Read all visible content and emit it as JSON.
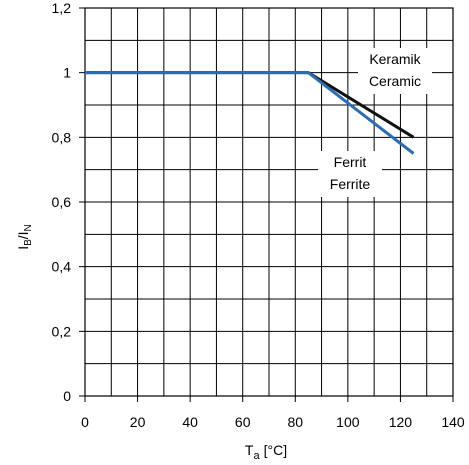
{
  "chart_data": {
    "type": "line",
    "xlabel": {
      "main": "T",
      "sub": "a",
      "unit": "[°C]"
    },
    "ylabel": {
      "p1": "I",
      "s1": "B",
      "p2": "/I",
      "s2": "N"
    },
    "xlim": [
      0,
      140
    ],
    "ylim": [
      0,
      1.2
    ],
    "x_ticks": [
      "0",
      "20",
      "40",
      "60",
      "80",
      "100",
      "120",
      "140"
    ],
    "y_ticks": [
      "0",
      "0,2",
      "0,4",
      "0,6",
      "0,8",
      "1",
      "1,2"
    ],
    "grid": true,
    "series": [
      {
        "label_lines": [
          "Keramik",
          "Ceramic"
        ],
        "color": "#111111",
        "x": [
          0,
          85,
          125
        ],
        "y": [
          1.0,
          1.0,
          0.8
        ]
      },
      {
        "label_lines": [
          "Ferrit",
          "Ferrite"
        ],
        "color": "#2a6db4",
        "x": [
          0,
          85,
          125
        ],
        "y": [
          1.0,
          1.0,
          0.75
        ]
      }
    ]
  }
}
